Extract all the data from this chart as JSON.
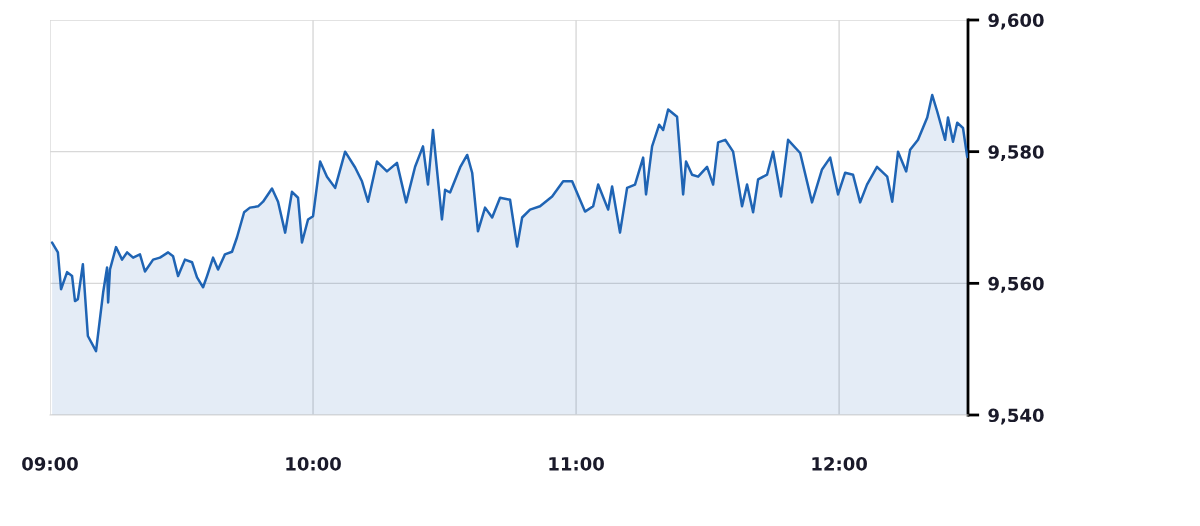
{
  "chart_data": {
    "type": "area",
    "x": [
      9.008,
      9.03,
      9.042,
      9.065,
      9.084,
      9.095,
      9.106,
      9.125,
      9.144,
      9.175,
      9.202,
      9.217,
      9.221,
      9.228,
      9.251,
      9.274,
      9.293,
      9.316,
      9.342,
      9.361,
      9.392,
      9.418,
      9.449,
      9.468,
      9.487,
      9.513,
      9.54,
      9.559,
      9.582,
      9.597,
      9.62,
      9.639,
      9.665,
      9.692,
      9.711,
      9.738,
      9.76,
      9.791,
      9.81,
      9.844,
      9.867,
      9.894,
      9.92,
      9.943,
      9.958,
      9.981,
      10.0,
      10.027,
      10.053,
      10.084,
      10.122,
      10.16,
      10.186,
      10.209,
      10.243,
      10.281,
      10.319,
      10.354,
      10.388,
      10.418,
      10.437,
      10.456,
      10.49,
      10.502,
      10.521,
      10.559,
      10.586,
      10.605,
      10.627,
      10.654,
      10.681,
      10.711,
      10.749,
      10.776,
      10.795,
      10.825,
      10.863,
      10.909,
      10.951,
      10.985,
      11.034,
      11.065,
      11.084,
      11.122,
      11.137,
      11.167,
      11.194,
      11.224,
      11.255,
      11.266,
      11.289,
      11.316,
      11.331,
      11.35,
      11.384,
      11.407,
      11.418,
      11.441,
      11.464,
      11.498,
      11.521,
      11.54,
      11.567,
      11.597,
      11.631,
      11.65,
      11.673,
      11.692,
      11.726,
      11.749,
      11.779,
      11.806,
      11.852,
      11.897,
      11.935,
      11.966,
      11.996,
      12.023,
      12.053,
      12.08,
      12.106,
      12.144,
      12.183,
      12.202,
      12.224,
      12.255,
      12.27,
      12.3,
      12.335,
      12.354,
      12.373,
      12.403,
      12.414,
      12.433,
      12.449,
      12.471,
      12.487
    ],
    "series": [
      {
        "color": "#1f64b4",
        "values": [
          9566.2,
          9564.7,
          9559.1,
          9561.7,
          9561.1,
          9557.3,
          9557.6,
          9562.9,
          9552.0,
          9549.7,
          9558.6,
          9562.4,
          9557.1,
          9562.1,
          9565.5,
          9563.6,
          9564.7,
          9563.9,
          9564.4,
          9561.8,
          9563.6,
          9563.9,
          9564.7,
          9564.1,
          9561.1,
          9563.6,
          9563.2,
          9560.9,
          9559.4,
          9561.1,
          9563.9,
          9562.1,
          9564.4,
          9564.8,
          9567.0,
          9570.8,
          9571.5,
          9571.7,
          9572.4,
          9574.4,
          9572.4,
          9567.7,
          9573.9,
          9573.0,
          9566.2,
          9569.7,
          9570.2,
          9578.5,
          9576.2,
          9574.5,
          9580.0,
          9577.6,
          9575.5,
          9572.4,
          9578.5,
          9577.0,
          9578.3,
          9572.3,
          9577.7,
          9580.8,
          9575.0,
          9583.3,
          9569.7,
          9574.2,
          9573.8,
          9577.6,
          9579.5,
          9576.8,
          9567.9,
          9571.5,
          9570.0,
          9573.0,
          9572.7,
          9565.6,
          9570.0,
          9571.2,
          9571.7,
          9573.2,
          9575.5,
          9575.5,
          9570.9,
          9571.7,
          9575.0,
          9571.2,
          9574.7,
          9567.7,
          9574.5,
          9575.0,
          9579.1,
          9573.5,
          9580.8,
          9584.1,
          9583.3,
          9586.4,
          9585.3,
          9573.5,
          9578.5,
          9576.5,
          9576.2,
          9577.7,
          9575.0,
          9581.4,
          9581.8,
          9580.0,
          9571.7,
          9575.0,
          9570.8,
          9575.8,
          9576.5,
          9580.0,
          9573.2,
          9581.8,
          9579.8,
          9572.3,
          9577.3,
          9579.1,
          9573.5,
          9576.8,
          9576.5,
          9572.3,
          9575.0,
          9577.7,
          9576.2,
          9572.4,
          9580.0,
          9577.0,
          9580.3,
          9581.8,
          9585.2,
          9588.6,
          9586.1,
          9581.8,
          9585.2,
          9581.5,
          9584.4,
          9583.6,
          9579.2
        ]
      }
    ],
    "xlim": [
      9,
      12.49
    ],
    "xticks": [
      {
        "value": 9,
        "label": "09:00"
      },
      {
        "value": 10,
        "label": "10:00"
      },
      {
        "value": 11,
        "label": "11:00"
      },
      {
        "value": 12,
        "label": "12:00"
      }
    ],
    "ylim": [
      9540,
      9600
    ],
    "yticks": [
      {
        "value": 9540,
        "label": "9,540"
      },
      {
        "value": 9560,
        "label": "9,560"
      },
      {
        "value": 9580,
        "label": "9,580"
      },
      {
        "value": 9600,
        "label": "9,600"
      }
    ],
    "grid": true
  }
}
